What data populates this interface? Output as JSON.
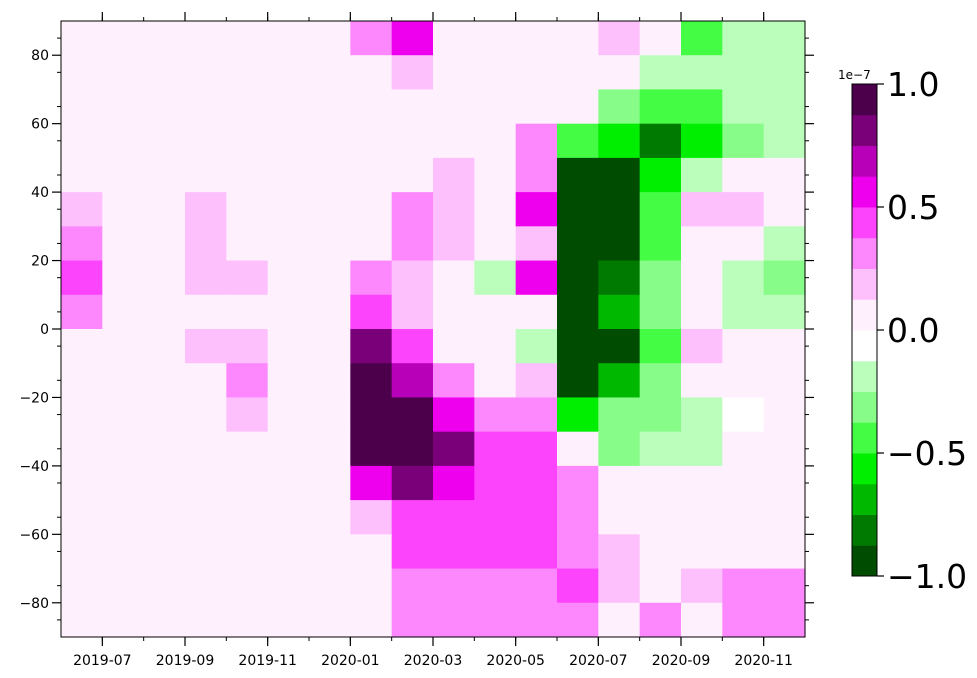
{
  "chart_data": {
    "type": "heatmap",
    "title": "",
    "xlabel": "",
    "ylabel": "",
    "x_ticks": [
      "2019-07",
      "2019-09",
      "2019-11",
      "2020-01",
      "2020-03",
      "2020-05",
      "2020-07",
      "2020-09",
      "2020-11"
    ],
    "x_range": [
      "2019-06",
      "2020-12"
    ],
    "y_ticks": [
      80,
      60,
      40,
      20,
      0,
      -20,
      -40,
      -60,
      -80
    ],
    "ylim": [
      -90,
      90
    ],
    "grid": false,
    "colormap": "pink-white-green diverging (PiYG reversed), discrete",
    "colorbar": {
      "scale_label": "1e−7",
      "ticks": [
        "1.0",
        "0.5",
        "0.0",
        "−0.5",
        "−1.0"
      ],
      "tick_values": [
        1.0,
        0.5,
        0.0,
        -0.5,
        -1.0
      ],
      "vmin": -1.0,
      "vmax": 1.0,
      "levels": 16,
      "colors": [
        "#004c00",
        "#007a00",
        "#00b800",
        "#00ee00",
        "#44fc44",
        "#88fc88",
        "#bbfdbb",
        "#ffffff",
        "#fff0fd",
        "#fdc0fd",
        "#fd88fd",
        "#fd44fd",
        "#ee00ee",
        "#b800b8",
        "#7a007a",
        "#4c004c"
      ]
    },
    "month_columns": [
      "2019-06",
      "2019-07",
      "2019-08",
      "2019-09",
      "2019-10",
      "2019-11",
      "2019-12",
      "2020-01",
      "2020-02",
      "2020-03",
      "2020-04",
      "2020-05",
      "2020-06",
      "2020-07",
      "2020-08",
      "2020-09",
      "2020-10",
      "2020-11"
    ],
    "latitude_edges": [
      90,
      80,
      70,
      60,
      50,
      40,
      30,
      20,
      10,
      0,
      -10,
      -20,
      -30,
      -40,
      -50,
      -60,
      -70,
      -80,
      -90
    ],
    "values_note": "Values are the approximate field in units of 1e-7; rows follow latitude_edges from north to south, columns follow month_columns.",
    "values": [
      [
        0.1,
        0.1,
        0.1,
        0.1,
        0.1,
        0.1,
        0.1,
        0.35,
        0.55,
        0.1,
        0.1,
        0.1,
        0.1,
        0.2,
        0.0,
        -0.4,
        -0.2,
        -0.2
      ],
      [
        0.1,
        0.1,
        0.1,
        0.1,
        0.1,
        0.1,
        0.1,
        0.1,
        0.2,
        0.1,
        0.1,
        0.1,
        0.1,
        0.05,
        -0.15,
        -0.25,
        -0.2,
        -0.2
      ],
      [
        0.1,
        0.1,
        0.1,
        0.1,
        0.1,
        0.1,
        0.1,
        0.1,
        0.1,
        0.1,
        0.1,
        0.1,
        0.1,
        -0.3,
        -0.4,
        -0.4,
        -0.25,
        -0.2
      ],
      [
        0.1,
        0.1,
        0.1,
        0.1,
        0.1,
        0.1,
        0.1,
        0.1,
        0.1,
        0.1,
        0.1,
        0.25,
        -0.45,
        -0.55,
        -0.85,
        -0.55,
        -0.3,
        -0.2
      ],
      [
        0.1,
        0.1,
        0.0,
        0.1,
        0.1,
        0.1,
        0.1,
        0.1,
        0.1,
        0.2,
        0.1,
        0.3,
        -0.95,
        -0.95,
        -0.55,
        -0.2,
        0.0,
        0.0
      ],
      [
        0.2,
        0.05,
        0.05,
        0.2,
        0.1,
        0.1,
        0.1,
        0.1,
        0.25,
        0.2,
        0.1,
        0.5,
        -0.95,
        -0.95,
        -0.5,
        0.2,
        0.15,
        0.0
      ],
      [
        0.35,
        0.1,
        0.1,
        0.2,
        0.1,
        0.1,
        0.1,
        0.1,
        0.3,
        0.2,
        0.05,
        0.2,
        -0.95,
        -0.95,
        -0.4,
        0.05,
        0.05,
        -0.15
      ],
      [
        0.4,
        0.1,
        0.1,
        0.15,
        0.2,
        0.1,
        0.1,
        0.25,
        0.2,
        0.05,
        -0.2,
        0.6,
        -0.95,
        -0.85,
        -0.35,
        0.05,
        -0.25,
        -0.35
      ],
      [
        0.25,
        0.1,
        0.1,
        0.1,
        0.1,
        0.1,
        0.1,
        0.45,
        0.2,
        0.05,
        0.05,
        0.1,
        -0.95,
        -0.75,
        -0.3,
        0.05,
        -0.2,
        -0.2
      ],
      [
        0.1,
        0.1,
        0.1,
        0.2,
        0.2,
        0.1,
        0.1,
        0.75,
        0.4,
        0.05,
        0.0,
        -0.2,
        -0.95,
        -0.9,
        -0.45,
        0.2,
        0.0,
        0.05
      ],
      [
        0.05,
        0.1,
        0.1,
        0.1,
        0.3,
        0.1,
        0.1,
        0.95,
        0.7,
        0.3,
        0.05,
        0.2,
        -0.95,
        -0.65,
        -0.35,
        0.05,
        0.1,
        0.1
      ],
      [
        0.1,
        0.1,
        0.1,
        0.1,
        0.2,
        0.1,
        0.1,
        0.95,
        0.95,
        0.6,
        0.3,
        0.3,
        -0.55,
        -0.35,
        -0.35,
        -0.25,
        -0.05,
        0.0
      ],
      [
        0.1,
        0.1,
        0.1,
        0.1,
        0.1,
        0.1,
        0.1,
        0.95,
        0.95,
        0.85,
        0.45,
        0.45,
        0.05,
        -0.35,
        -0.2,
        -0.2,
        0.0,
        0.0
      ],
      [
        0.1,
        0.1,
        0.1,
        0.1,
        0.1,
        0.1,
        0.1,
        0.6,
        0.75,
        0.6,
        0.45,
        0.45,
        0.25,
        0.1,
        0.0,
        0.0,
        0.0,
        0.0
      ],
      [
        0.1,
        0.1,
        0.1,
        0.1,
        0.1,
        0.1,
        0.1,
        0.2,
        0.4,
        0.45,
        0.45,
        0.4,
        0.25,
        0.1,
        0.0,
        0.0,
        0.1,
        0.1
      ],
      [
        0.1,
        0.1,
        0.1,
        0.1,
        0.1,
        0.1,
        0.1,
        0.1,
        0.4,
        0.4,
        0.4,
        0.4,
        0.35,
        0.15,
        0.1,
        0.1,
        0.1,
        0.1
      ],
      [
        0.1,
        0.1,
        0.1,
        0.1,
        0.1,
        0.1,
        0.1,
        0.1,
        0.25,
        0.35,
        0.35,
        0.35,
        0.45,
        0.2,
        0.1,
        0.15,
        0.35,
        0.3
      ],
      [
        0.1,
        0.1,
        0.1,
        0.1,
        0.1,
        0.1,
        0.1,
        0.1,
        0.25,
        0.25,
        0.25,
        0.25,
        0.3,
        0.1,
        0.25,
        0.1,
        0.35,
        0.25
      ]
    ]
  }
}
